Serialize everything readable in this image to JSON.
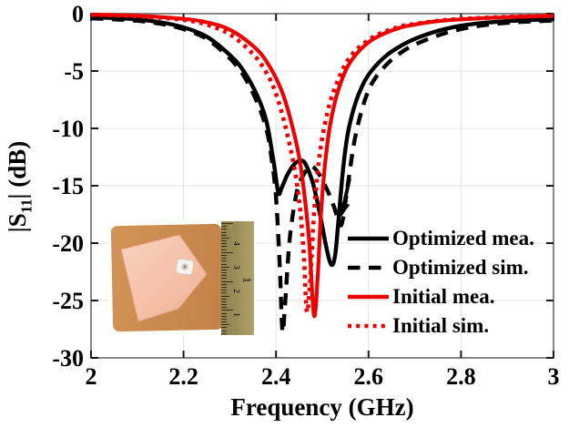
{
  "chart_data": {
    "type": "line",
    "title": "",
    "xlabel": "Frequency (GHz)",
    "ylabel": "|S11| (dB)",
    "ylabel_parts": {
      "pre": "|S",
      "sub": "11",
      "post": "| (dB)"
    },
    "xlim": [
      2,
      3
    ],
    "ylim": [
      -30,
      0
    ],
    "x_ticks": [
      2,
      2.2,
      2.4,
      2.6,
      2.8,
      3
    ],
    "x_tick_labels": [
      "2",
      "2.2",
      "2.4",
      "2.6",
      "2.8",
      "3"
    ],
    "y_ticks": [
      0,
      -5,
      -10,
      -15,
      -20,
      -25,
      -30
    ],
    "y_tick_labels": [
      "0",
      "-5",
      "-10",
      "-15",
      "-20",
      "-25",
      "-30"
    ],
    "grid": true,
    "legend_position": "inside-right-middle",
    "series": [
      {
        "name": "Optimized mea.",
        "color": "#000000",
        "style": "solid",
        "width": 4.4,
        "points": [
          [
            2.0,
            -0.3
          ],
          [
            2.05,
            -0.38
          ],
          [
            2.1,
            -0.5
          ],
          [
            2.15,
            -0.75
          ],
          [
            2.2,
            -1.2
          ],
          [
            2.25,
            -2.0
          ],
          [
            2.3,
            -3.6
          ],
          [
            2.33,
            -5.0
          ],
          [
            2.36,
            -7.2
          ],
          [
            2.38,
            -9.5
          ],
          [
            2.395,
            -13.0
          ],
          [
            2.405,
            -15.6
          ],
          [
            2.412,
            -15.2
          ],
          [
            2.425,
            -14.0
          ],
          [
            2.44,
            -13.1
          ],
          [
            2.455,
            -12.8
          ],
          [
            2.465,
            -13.2
          ],
          [
            2.48,
            -14.8
          ],
          [
            2.495,
            -17.5
          ],
          [
            2.51,
            -20.6
          ],
          [
            2.52,
            -21.9
          ],
          [
            2.528,
            -21.0
          ],
          [
            2.535,
            -18.0
          ],
          [
            2.545,
            -13.5
          ],
          [
            2.555,
            -10.5
          ],
          [
            2.57,
            -8.0
          ],
          [
            2.59,
            -6.0
          ],
          [
            2.61,
            -4.8
          ],
          [
            2.64,
            -3.6
          ],
          [
            2.67,
            -2.8
          ],
          [
            2.7,
            -2.2
          ],
          [
            2.75,
            -1.5
          ],
          [
            2.8,
            -1.05
          ],
          [
            2.85,
            -0.8
          ],
          [
            2.9,
            -0.65
          ],
          [
            2.95,
            -0.55
          ],
          [
            3.0,
            -0.5
          ]
        ]
      },
      {
        "name": "Optimized sim.",
        "color": "#000000",
        "style": "dashed",
        "width": 4.4,
        "points": [
          [
            2.0,
            -0.4
          ],
          [
            2.05,
            -0.5
          ],
          [
            2.1,
            -0.62
          ],
          [
            2.15,
            -0.88
          ],
          [
            2.2,
            -1.35
          ],
          [
            2.25,
            -2.2
          ],
          [
            2.3,
            -3.9
          ],
          [
            2.33,
            -5.4
          ],
          [
            2.36,
            -7.8
          ],
          [
            2.38,
            -10.2
          ],
          [
            2.39,
            -12.5
          ],
          [
            2.4,
            -16.0
          ],
          [
            2.408,
            -22.0
          ],
          [
            2.414,
            -27.7
          ],
          [
            2.42,
            -25.0
          ],
          [
            2.43,
            -19.5
          ],
          [
            2.445,
            -15.5
          ],
          [
            2.46,
            -14.0
          ],
          [
            2.475,
            -13.3
          ],
          [
            2.49,
            -13.8
          ],
          [
            2.51,
            -15.3
          ],
          [
            2.525,
            -16.8
          ],
          [
            2.538,
            -18.4
          ],
          [
            2.545,
            -17.8
          ],
          [
            2.555,
            -15.0
          ],
          [
            2.57,
            -11.0
          ],
          [
            2.59,
            -7.8
          ],
          [
            2.61,
            -5.9
          ],
          [
            2.64,
            -4.4
          ],
          [
            2.67,
            -3.4
          ],
          [
            2.7,
            -2.7
          ],
          [
            2.75,
            -1.9
          ],
          [
            2.8,
            -1.35
          ],
          [
            2.85,
            -1.0
          ],
          [
            2.9,
            -0.8
          ],
          [
            2.95,
            -0.68
          ],
          [
            3.0,
            -0.6
          ]
        ]
      },
      {
        "name": "Initial mea.",
        "color": "#ee0000",
        "style": "solid",
        "width": 4.2,
        "points": [
          [
            2.0,
            -0.08
          ],
          [
            2.1,
            -0.18
          ],
          [
            2.2,
            -0.45
          ],
          [
            2.25,
            -0.75
          ],
          [
            2.3,
            -1.4
          ],
          [
            2.35,
            -2.8
          ],
          [
            2.38,
            -4.2
          ],
          [
            2.41,
            -6.5
          ],
          [
            2.43,
            -9.0
          ],
          [
            2.45,
            -12.5
          ],
          [
            2.462,
            -16.0
          ],
          [
            2.472,
            -20.0
          ],
          [
            2.482,
            -26.3
          ],
          [
            2.49,
            -23.0
          ],
          [
            2.497,
            -17.5
          ],
          [
            2.505,
            -13.5
          ],
          [
            2.515,
            -10.2
          ],
          [
            2.53,
            -7.3
          ],
          [
            2.55,
            -5.0
          ],
          [
            2.57,
            -3.7
          ],
          [
            2.6,
            -2.5
          ],
          [
            2.63,
            -1.8
          ],
          [
            2.67,
            -1.2
          ],
          [
            2.7,
            -0.95
          ],
          [
            2.75,
            -0.65
          ],
          [
            2.8,
            -0.5
          ],
          [
            2.9,
            -0.3
          ],
          [
            3.0,
            -0.2
          ]
        ]
      },
      {
        "name": "Initial sim.",
        "color": "#ee0000",
        "style": "dotted",
        "width": 4.6,
        "points": [
          [
            2.0,
            -0.1
          ],
          [
            2.1,
            -0.22
          ],
          [
            2.2,
            -0.55
          ],
          [
            2.25,
            -0.95
          ],
          [
            2.3,
            -1.8
          ],
          [
            2.35,
            -3.5
          ],
          [
            2.38,
            -5.2
          ],
          [
            2.4,
            -7.0
          ],
          [
            2.42,
            -9.8
          ],
          [
            2.44,
            -13.5
          ],
          [
            2.452,
            -17.0
          ],
          [
            2.46,
            -21.0
          ],
          [
            2.467,
            -26.0
          ],
          [
            2.475,
            -22.5
          ],
          [
            2.482,
            -17.5
          ],
          [
            2.49,
            -13.8
          ],
          [
            2.5,
            -10.8
          ],
          [
            2.515,
            -8.0
          ],
          [
            2.53,
            -6.2
          ],
          [
            2.55,
            -4.4
          ],
          [
            2.57,
            -3.3
          ],
          [
            2.6,
            -2.3
          ],
          [
            2.63,
            -1.65
          ],
          [
            2.67,
            -1.1
          ],
          [
            2.7,
            -0.9
          ],
          [
            2.75,
            -0.62
          ],
          [
            2.8,
            -0.46
          ],
          [
            2.9,
            -0.28
          ],
          [
            3.0,
            -0.18
          ]
        ]
      }
    ],
    "annotations": [
      {
        "type": "arrow",
        "from": [
          2.559,
          -14.37
        ],
        "to": [
          2.541,
          -17.7
        ],
        "color": "#000000"
      }
    ]
  },
  "colors": {
    "grid": "#e3e3e3",
    "axis_box": "#7a7a7a",
    "tick": "#1a1a1a",
    "text": "#000000"
  },
  "inset": {
    "description": "photo of fabricated patch antenna prototype with ruler",
    "ruler": {
      "left_numbers": [
        "4",
        "3",
        "2",
        "1"
      ],
      "right_numbers": [
        "1"
      ]
    },
    "colors": {
      "substrate": "#c98a4e",
      "patch": "#f5c0a8",
      "ruler": "#9a8d58",
      "connector": "#f6f4ef"
    }
  }
}
